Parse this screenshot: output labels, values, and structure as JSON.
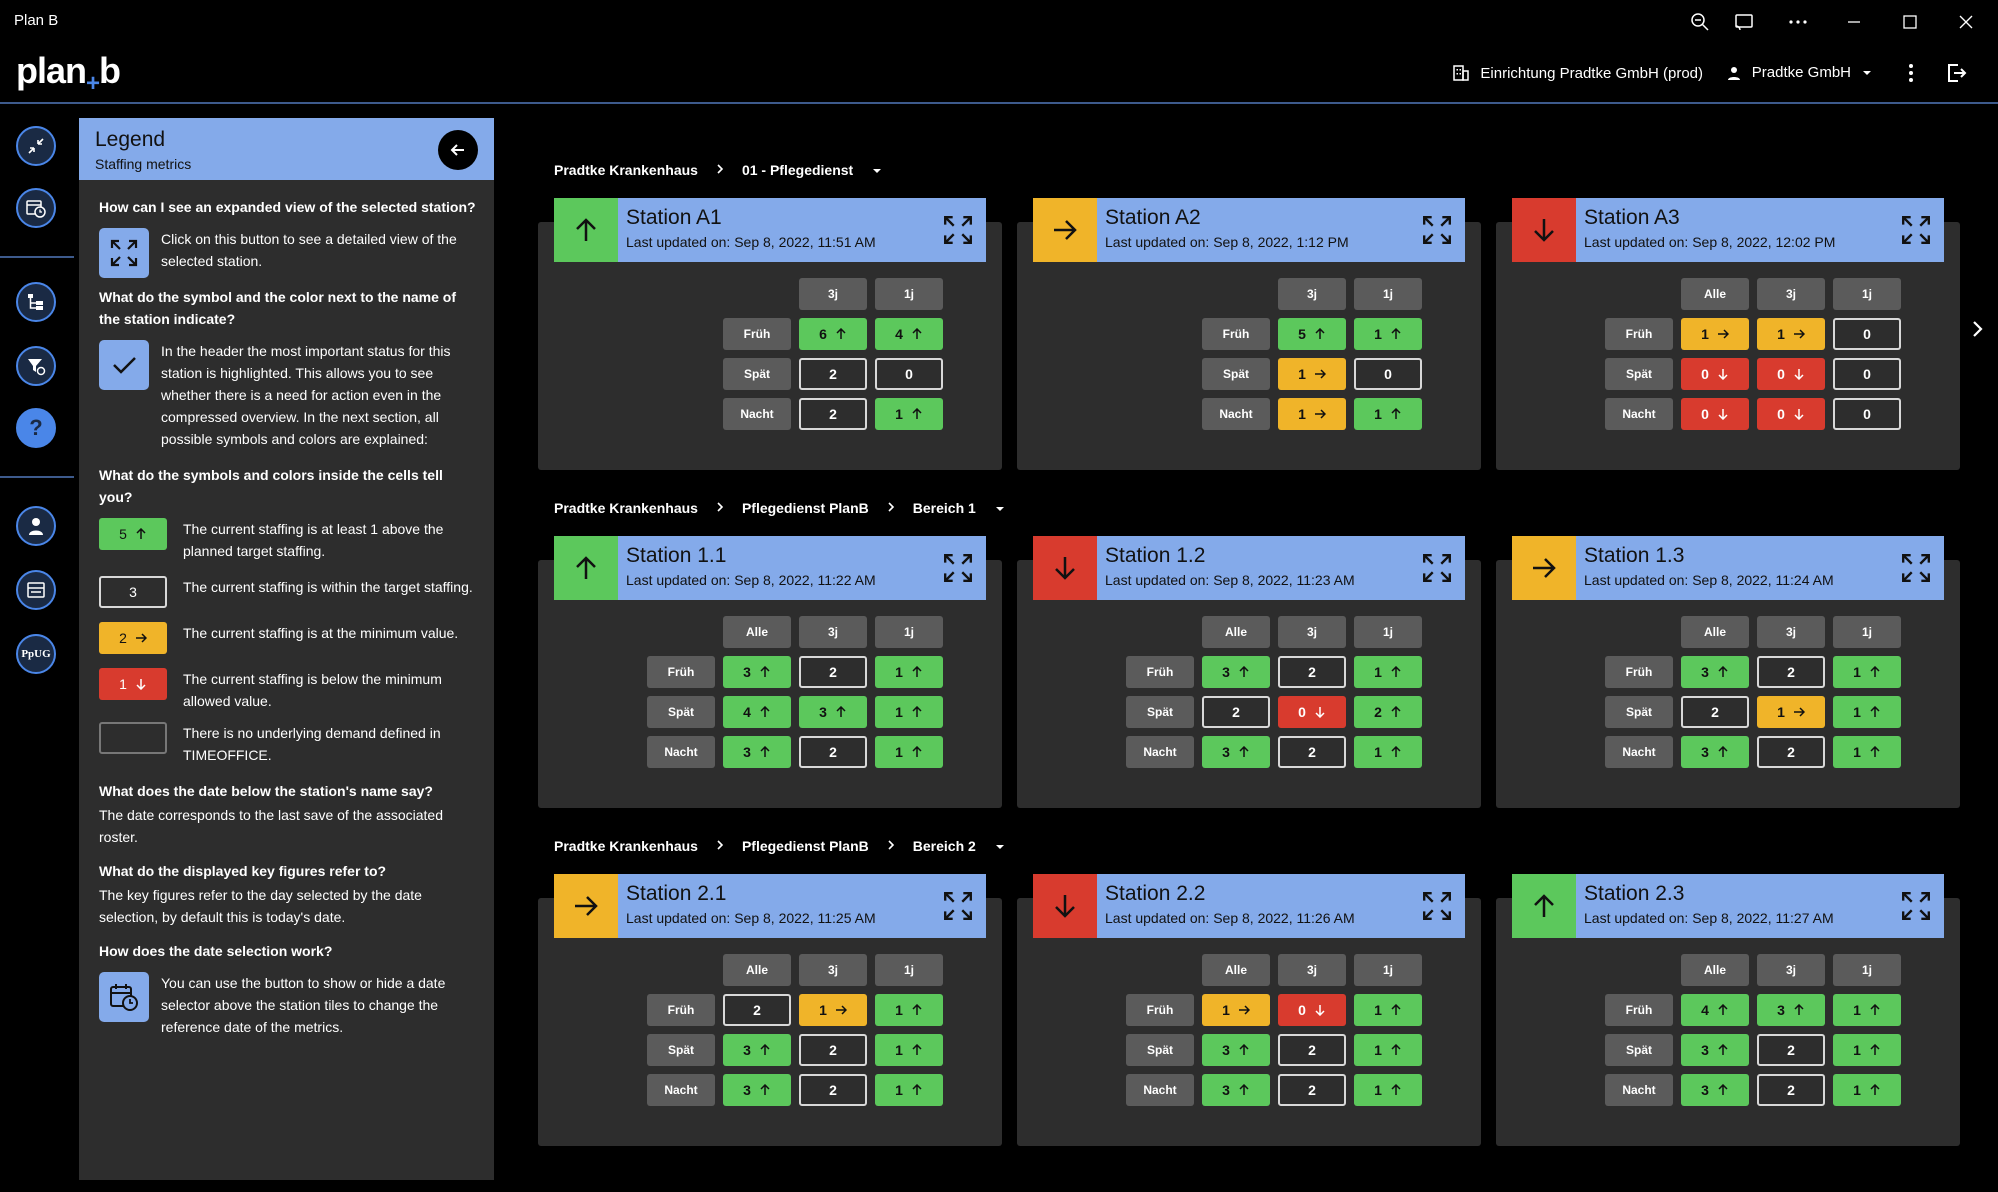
{
  "window": {
    "title": "Plan B"
  },
  "app": {
    "logo_a": "plan",
    "logo_plus": "+",
    "logo_b": "b",
    "facility": "Einrichtung Pradtke GmbH (prod)",
    "user": "Pradtke GmbH"
  },
  "legend": {
    "title": "Legend",
    "subtitle": "Staffing metrics",
    "q1": "How can I see an expanded view of the selected station?",
    "a1": "Click on this button to see a detailed view of the selected station.",
    "q2": "What do the symbol and the color next to the name of the station indicate?",
    "a2": "In the header the most important status for this station is highlighted. This allows you to see whether there is a need for action even in the compressed overview. In the next section, all possible symbols and colors are explained:",
    "q3": "What do the symbols and colors inside the cells tell you?",
    "s1_val": "5",
    "s1_text": "The current staffing is at least 1 above the planned target staffing.",
    "s2_val": "3",
    "s2_text": "The current staffing is within the target staffing.",
    "s3_val": "2",
    "s3_text": "The current staffing is at the minimum value.",
    "s4_val": "1",
    "s4_text": "The current staffing is below the minimum allowed value.",
    "s5_text": "There is no underlying demand defined in TIMEOFFICE.",
    "q4": "What does the date below the station's name say?",
    "a4": "The date corresponds to the last save of the associated roster.",
    "q5": "What do the displayed key figures refer to?",
    "a5": "The key figures refer to the day selected by the date selection, by default this is today's date.",
    "q6": "How does the date selection work?",
    "a6": "You can use the button to show or hide a date selector above the station tiles to change the reference date of the metrics."
  },
  "colors": {
    "green": "#5cc85c",
    "yellow": "#f0b429",
    "red": "#d83b2e",
    "blue": "#84aaea"
  },
  "groups": [
    {
      "crumbs": [
        "Pradtke Krankenhaus",
        "01 - Pflegedienst"
      ],
      "stations": [
        {
          "name": "Station A1",
          "updated": "Last updated on: Sep 8, 2022, 11:51 AM",
          "status": "up",
          "cols": [
            "3j",
            "1j"
          ],
          "rows": [
            {
              "label": "Früh",
              "cells": [
                [
                  "6",
                  "up"
                ],
                [
                  "4",
                  "up"
                ]
              ]
            },
            {
              "label": "Spät",
              "cells": [
                [
                  "2",
                  "ok"
                ],
                [
                  "0",
                  "ok"
                ]
              ]
            },
            {
              "label": "Nacht",
              "cells": [
                [
                  "2",
                  "ok"
                ],
                [
                  "1",
                  "up"
                ]
              ]
            }
          ]
        },
        {
          "name": "Station A2",
          "updated": "Last updated on: Sep 8, 2022, 1:12 PM",
          "status": "right",
          "cols": [
            "3j",
            "1j"
          ],
          "rows": [
            {
              "label": "Früh",
              "cells": [
                [
                  "5",
                  "up"
                ],
                [
                  "1",
                  "up"
                ]
              ]
            },
            {
              "label": "Spät",
              "cells": [
                [
                  "1",
                  "right"
                ],
                [
                  "0",
                  "ok"
                ]
              ]
            },
            {
              "label": "Nacht",
              "cells": [
                [
                  "1",
                  "right"
                ],
                [
                  "1",
                  "up"
                ]
              ]
            }
          ]
        },
        {
          "name": "Station A3",
          "updated": "Last updated on: Sep 8, 2022, 12:02 PM",
          "status": "down",
          "cols": [
            "Alle",
            "3j",
            "1j"
          ],
          "rows": [
            {
              "label": "Früh",
              "cells": [
                [
                  "1",
                  "right"
                ],
                [
                  "1",
                  "right"
                ],
                [
                  "0",
                  "ok"
                ]
              ]
            },
            {
              "label": "Spät",
              "cells": [
                [
                  "0",
                  "down"
                ],
                [
                  "0",
                  "down"
                ],
                [
                  "0",
                  "ok"
                ]
              ]
            },
            {
              "label": "Nacht",
              "cells": [
                [
                  "0",
                  "down"
                ],
                [
                  "0",
                  "down"
                ],
                [
                  "0",
                  "ok"
                ]
              ]
            }
          ]
        }
      ]
    },
    {
      "crumbs": [
        "Pradtke Krankenhaus",
        "Pflegedienst PlanB",
        "Bereich 1"
      ],
      "stations": [
        {
          "name": "Station 1.1",
          "updated": "Last updated on: Sep 8, 2022, 11:22 AM",
          "status": "up",
          "cols": [
            "Alle",
            "3j",
            "1j"
          ],
          "rows": [
            {
              "label": "Früh",
              "cells": [
                [
                  "3",
                  "up"
                ],
                [
                  "2",
                  "ok"
                ],
                [
                  "1",
                  "up"
                ]
              ]
            },
            {
              "label": "Spät",
              "cells": [
                [
                  "4",
                  "up"
                ],
                [
                  "3",
                  "up"
                ],
                [
                  "1",
                  "up"
                ]
              ]
            },
            {
              "label": "Nacht",
              "cells": [
                [
                  "3",
                  "up"
                ],
                [
                  "2",
                  "ok"
                ],
                [
                  "1",
                  "up"
                ]
              ]
            }
          ]
        },
        {
          "name": "Station 1.2",
          "updated": "Last updated on: Sep 8, 2022, 11:23 AM",
          "status": "down",
          "cols": [
            "Alle",
            "3j",
            "1j"
          ],
          "rows": [
            {
              "label": "Früh",
              "cells": [
                [
                  "3",
                  "up"
                ],
                [
                  "2",
                  "ok"
                ],
                [
                  "1",
                  "up"
                ]
              ]
            },
            {
              "label": "Spät",
              "cells": [
                [
                  "2",
                  "ok"
                ],
                [
                  "0",
                  "down"
                ],
                [
                  "2",
                  "up"
                ]
              ]
            },
            {
              "label": "Nacht",
              "cells": [
                [
                  "3",
                  "up"
                ],
                [
                  "2",
                  "ok"
                ],
                [
                  "1",
                  "up"
                ]
              ]
            }
          ]
        },
        {
          "name": "Station 1.3",
          "updated": "Last updated on: Sep 8, 2022, 11:24 AM",
          "status": "right",
          "cols": [
            "Alle",
            "3j",
            "1j"
          ],
          "rows": [
            {
              "label": "Früh",
              "cells": [
                [
                  "3",
                  "up"
                ],
                [
                  "2",
                  "ok"
                ],
                [
                  "1",
                  "up"
                ]
              ]
            },
            {
              "label": "Spät",
              "cells": [
                [
                  "2",
                  "ok"
                ],
                [
                  "1",
                  "right"
                ],
                [
                  "1",
                  "up"
                ]
              ]
            },
            {
              "label": "Nacht",
              "cells": [
                [
                  "3",
                  "up"
                ],
                [
                  "2",
                  "ok"
                ],
                [
                  "1",
                  "up"
                ]
              ]
            }
          ]
        }
      ]
    },
    {
      "crumbs": [
        "Pradtke Krankenhaus",
        "Pflegedienst PlanB",
        "Bereich 2"
      ],
      "stations": [
        {
          "name": "Station 2.1",
          "updated": "Last updated on: Sep 8, 2022, 11:25 AM",
          "status": "right",
          "cols": [
            "Alle",
            "3j",
            "1j"
          ],
          "rows": [
            {
              "label": "Früh",
              "cells": [
                [
                  "2",
                  "ok"
                ],
                [
                  "1",
                  "right"
                ],
                [
                  "1",
                  "up"
                ]
              ]
            },
            {
              "label": "Spät",
              "cells": [
                [
                  "3",
                  "up"
                ],
                [
                  "2",
                  "ok"
                ],
                [
                  "1",
                  "up"
                ]
              ]
            },
            {
              "label": "Nacht",
              "cells": [
                [
                  "3",
                  "up"
                ],
                [
                  "2",
                  "ok"
                ],
                [
                  "1",
                  "up"
                ]
              ]
            }
          ]
        },
        {
          "name": "Station 2.2",
          "updated": "Last updated on: Sep 8, 2022, 11:26 AM",
          "status": "down",
          "cols": [
            "Alle",
            "3j",
            "1j"
          ],
          "rows": [
            {
              "label": "Früh",
              "cells": [
                [
                  "1",
                  "right"
                ],
                [
                  "0",
                  "down"
                ],
                [
                  "1",
                  "up"
                ]
              ]
            },
            {
              "label": "Spät",
              "cells": [
                [
                  "3",
                  "up"
                ],
                [
                  "2",
                  "ok"
                ],
                [
                  "1",
                  "up"
                ]
              ]
            },
            {
              "label": "Nacht",
              "cells": [
                [
                  "3",
                  "up"
                ],
                [
                  "2",
                  "ok"
                ],
                [
                  "1",
                  "up"
                ]
              ]
            }
          ]
        },
        {
          "name": "Station 2.3",
          "updated": "Last updated on: Sep 8, 2022, 11:27 AM",
          "status": "up",
          "cols": [
            "Alle",
            "3j",
            "1j"
          ],
          "rows": [
            {
              "label": "Früh",
              "cells": [
                [
                  "4",
                  "up"
                ],
                [
                  "3",
                  "up"
                ],
                [
                  "1",
                  "up"
                ]
              ]
            },
            {
              "label": "Spät",
              "cells": [
                [
                  "3",
                  "up"
                ],
                [
                  "2",
                  "ok"
                ],
                [
                  "1",
                  "up"
                ]
              ]
            },
            {
              "label": "Nacht",
              "cells": [
                [
                  "3",
                  "up"
                ],
                [
                  "2",
                  "ok"
                ],
                [
                  "1",
                  "up"
                ]
              ]
            }
          ]
        }
      ]
    }
  ]
}
